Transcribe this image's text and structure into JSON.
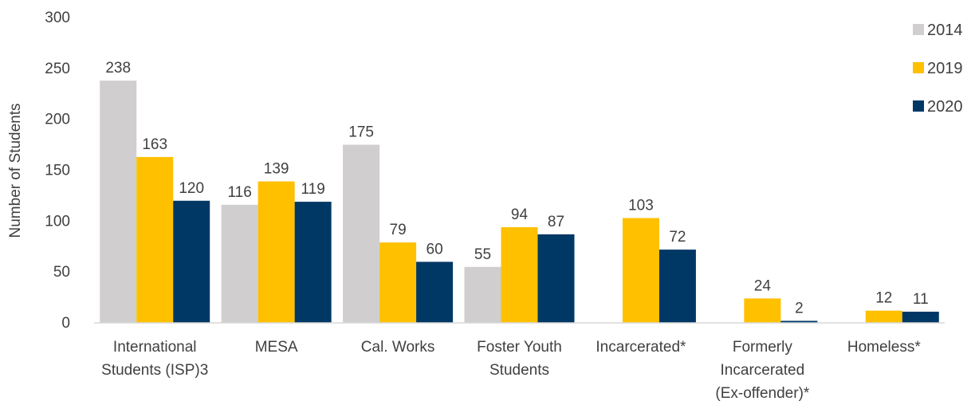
{
  "chart_data": {
    "type": "bar",
    "title": "",
    "xlabel": "",
    "ylabel": "Number of Students",
    "ylim": [
      0,
      300
    ],
    "yticks": [
      0,
      50,
      100,
      150,
      200,
      250,
      300
    ],
    "grid": false,
    "legend_position": "top-right",
    "categories": [
      [
        "International",
        "Students (ISP)3"
      ],
      [
        "MESA"
      ],
      [
        "Cal. Works"
      ],
      [
        "Foster Youth",
        "Students"
      ],
      [
        "Incarcerated*"
      ],
      [
        "Formerly",
        "Incarcerated",
        "(Ex-offender)*"
      ],
      [
        "Homeless*"
      ]
    ],
    "series": [
      {
        "name": "2014",
        "color": "#d0cece",
        "values": [
          238,
          116,
          175,
          55,
          null,
          null,
          null
        ]
      },
      {
        "name": "2019",
        "color": "#ffc000",
        "values": [
          163,
          139,
          79,
          94,
          103,
          24,
          12
        ]
      },
      {
        "name": "2020",
        "color": "#003865",
        "values": [
          120,
          119,
          60,
          87,
          72,
          2,
          11
        ]
      }
    ]
  }
}
